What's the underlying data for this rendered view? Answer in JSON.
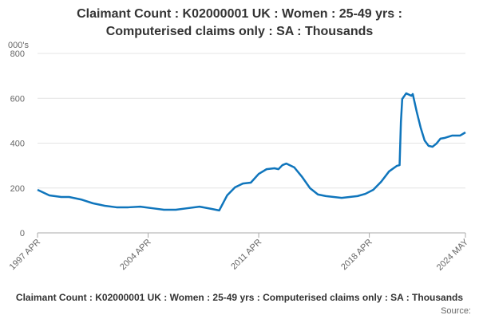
{
  "chart_data": {
    "type": "line",
    "title_lines": [
      "Claimant Count : K02000001 UK : Women : 25-49 yrs :",
      "Computerised claims only : SA : Thousands"
    ],
    "y_unit": "000's",
    "caption": "Claimant Count : K02000001 UK : Women : 25-49 yrs : Computerised claims only : SA : Thousands",
    "source": "Source:",
    "x": [
      "1997-04",
      "1998-01",
      "1998-10",
      "1999-04",
      "2000-01",
      "2000-10",
      "2001-07",
      "2002-04",
      "2003-01",
      "2003-10",
      "2004-07",
      "2005-04",
      "2006-01",
      "2006-10",
      "2007-07",
      "2008-04",
      "2008-10",
      "2009-04",
      "2009-10",
      "2010-04",
      "2010-10",
      "2011-04",
      "2011-10",
      "2012-04",
      "2012-07",
      "2012-10",
      "2013-01",
      "2013-07",
      "2014-01",
      "2014-07",
      "2015-01",
      "2015-07",
      "2016-01",
      "2016-07",
      "2017-01",
      "2017-07",
      "2018-01",
      "2018-07",
      "2019-01",
      "2019-07",
      "2020-01",
      "2020-03",
      "2020-04",
      "2020-05",
      "2020-08",
      "2020-12",
      "2021-01",
      "2021-04",
      "2021-07",
      "2021-10",
      "2022-01",
      "2022-04",
      "2022-07",
      "2022-10",
      "2023-01",
      "2023-07",
      "2024-01",
      "2024-05"
    ],
    "series": [
      {
        "name": "Claimant Count",
        "color": "#0f75bc",
        "values": [
          192,
          167,
          160,
          160,
          149,
          132,
          121,
          114,
          114,
          117,
          110,
          103,
          103,
          110,
          117,
          107,
          100,
          167,
          203,
          220,
          224,
          263,
          284,
          288,
          284,
          302,
          309,
          292,
          249,
          199,
          171,
          164,
          160,
          156,
          160,
          164,
          174,
          192,
          228,
          274,
          299,
          302,
          494,
          597,
          622,
          611,
          619,
          540,
          469,
          412,
          388,
          384,
          398,
          420,
          423,
          434,
          434,
          448
        ]
      }
    ],
    "xlim": [
      "1997-04",
      "2024-05"
    ],
    "xticks": [
      {
        "value": "1997-04",
        "label": "1997 APR"
      },
      {
        "value": "2004-04",
        "label": "2004 APR"
      },
      {
        "value": "2011-04",
        "label": "2011 APR"
      },
      {
        "value": "2018-04",
        "label": "2018 APR"
      },
      {
        "value": "2024-05",
        "label": "2024 MAY"
      }
    ],
    "ylim": [
      0,
      800
    ],
    "yticks": [
      0,
      200,
      400,
      600,
      800
    ],
    "grid": true
  }
}
